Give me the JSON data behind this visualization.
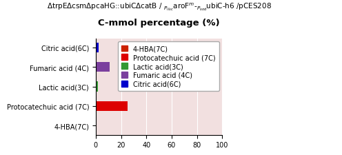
{
  "title_line1_left": "ΔtrpEΔcsmΔpcaHG::ubiCΔcatB / ",
  "title_line1_right": "$_{P_{ilvc}}$aroF$^{m}$-$_{P_{sod}}$ubiC-h6 /pCES208",
  "title_line2": "C-mmol percentage (%)",
  "categories": [
    "4-HBA(7C)",
    "Protocatechuic acid (7C)",
    "Lactic acid(3C)",
    "Fumaric acid (4C)",
    "Citric acid(6C)"
  ],
  "values": [
    0,
    25,
    1.5,
    11,
    2
  ],
  "colors": [
    "#cc2200",
    "#dd0000",
    "#339933",
    "#7b3f9e",
    "#0000cc"
  ],
  "xlim": [
    0,
    100
  ],
  "xticks": [
    0,
    20,
    40,
    60,
    80,
    100
  ],
  "legend_labels": [
    "4-HBA(7C)",
    "Protocatechuic acid (7C)",
    "Lactic acid(3C)",
    "Fumaric acid (4C)",
    "Citric acid(6C)"
  ],
  "legend_colors": [
    "#cc2200",
    "#dd0000",
    "#339933",
    "#7b3f9e",
    "#0000cc"
  ],
  "bg_color": "#f2e0e0",
  "bar_height": 0.5,
  "title1_fontsize": 7.5,
  "title1r_fontsize": 6.0,
  "subtitle_fontsize": 9.5,
  "axis_fontsize": 7,
  "legend_fontsize": 7
}
